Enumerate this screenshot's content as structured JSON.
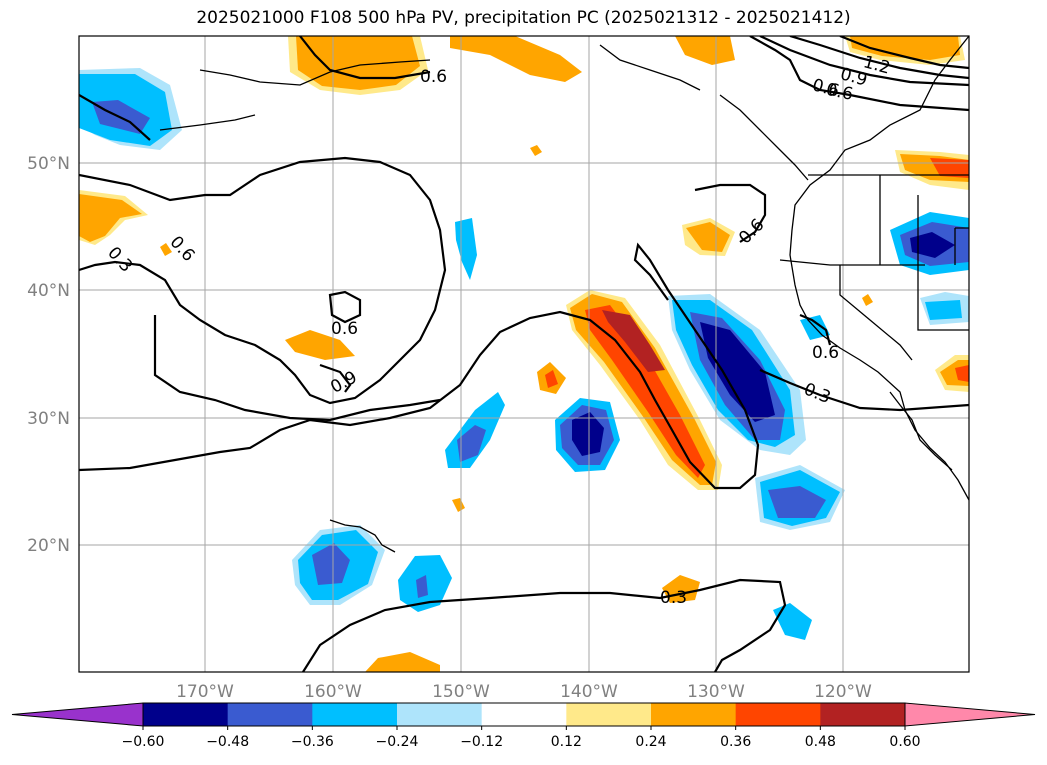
{
  "title": "2025021000 F108 500 hPa PV, precipitation PC (2025021312 - 2025021412)",
  "map": {
    "lon_range": [
      180,
      110
    ],
    "lat_range": [
      10,
      60
    ],
    "lat_ticks": [
      "50°N",
      "40°N",
      "30°N",
      "20°N"
    ],
    "lon_ticks": [
      "170°W",
      "160°W",
      "150°W",
      "140°W",
      "130°W",
      "120°W"
    ],
    "grid": true
  },
  "colorbar": {
    "labels": [
      "−0.60",
      "−0.48",
      "−0.36",
      "−0.24",
      "−0.12",
      "0.12",
      "0.24",
      "0.36",
      "0.48",
      "0.60"
    ],
    "colors": [
      "#9932cc",
      "#00008b",
      "#3a5bd0",
      "#00bfff",
      "#aee4fb",
      "#ffffff",
      "#ffe98a",
      "#ffa500",
      "#ff4500",
      "#b22222",
      "#ff88aa"
    ]
  },
  "pv_contour_labels": [
    "0.6",
    "0.6",
    "0.3",
    "0.6",
    "0.9",
    "0.6",
    "0.3",
    "0.6",
    "0.6",
    "0.3",
    "0.9",
    "0.6",
    "1.2",
    "0.6",
    "0.9"
  ]
}
